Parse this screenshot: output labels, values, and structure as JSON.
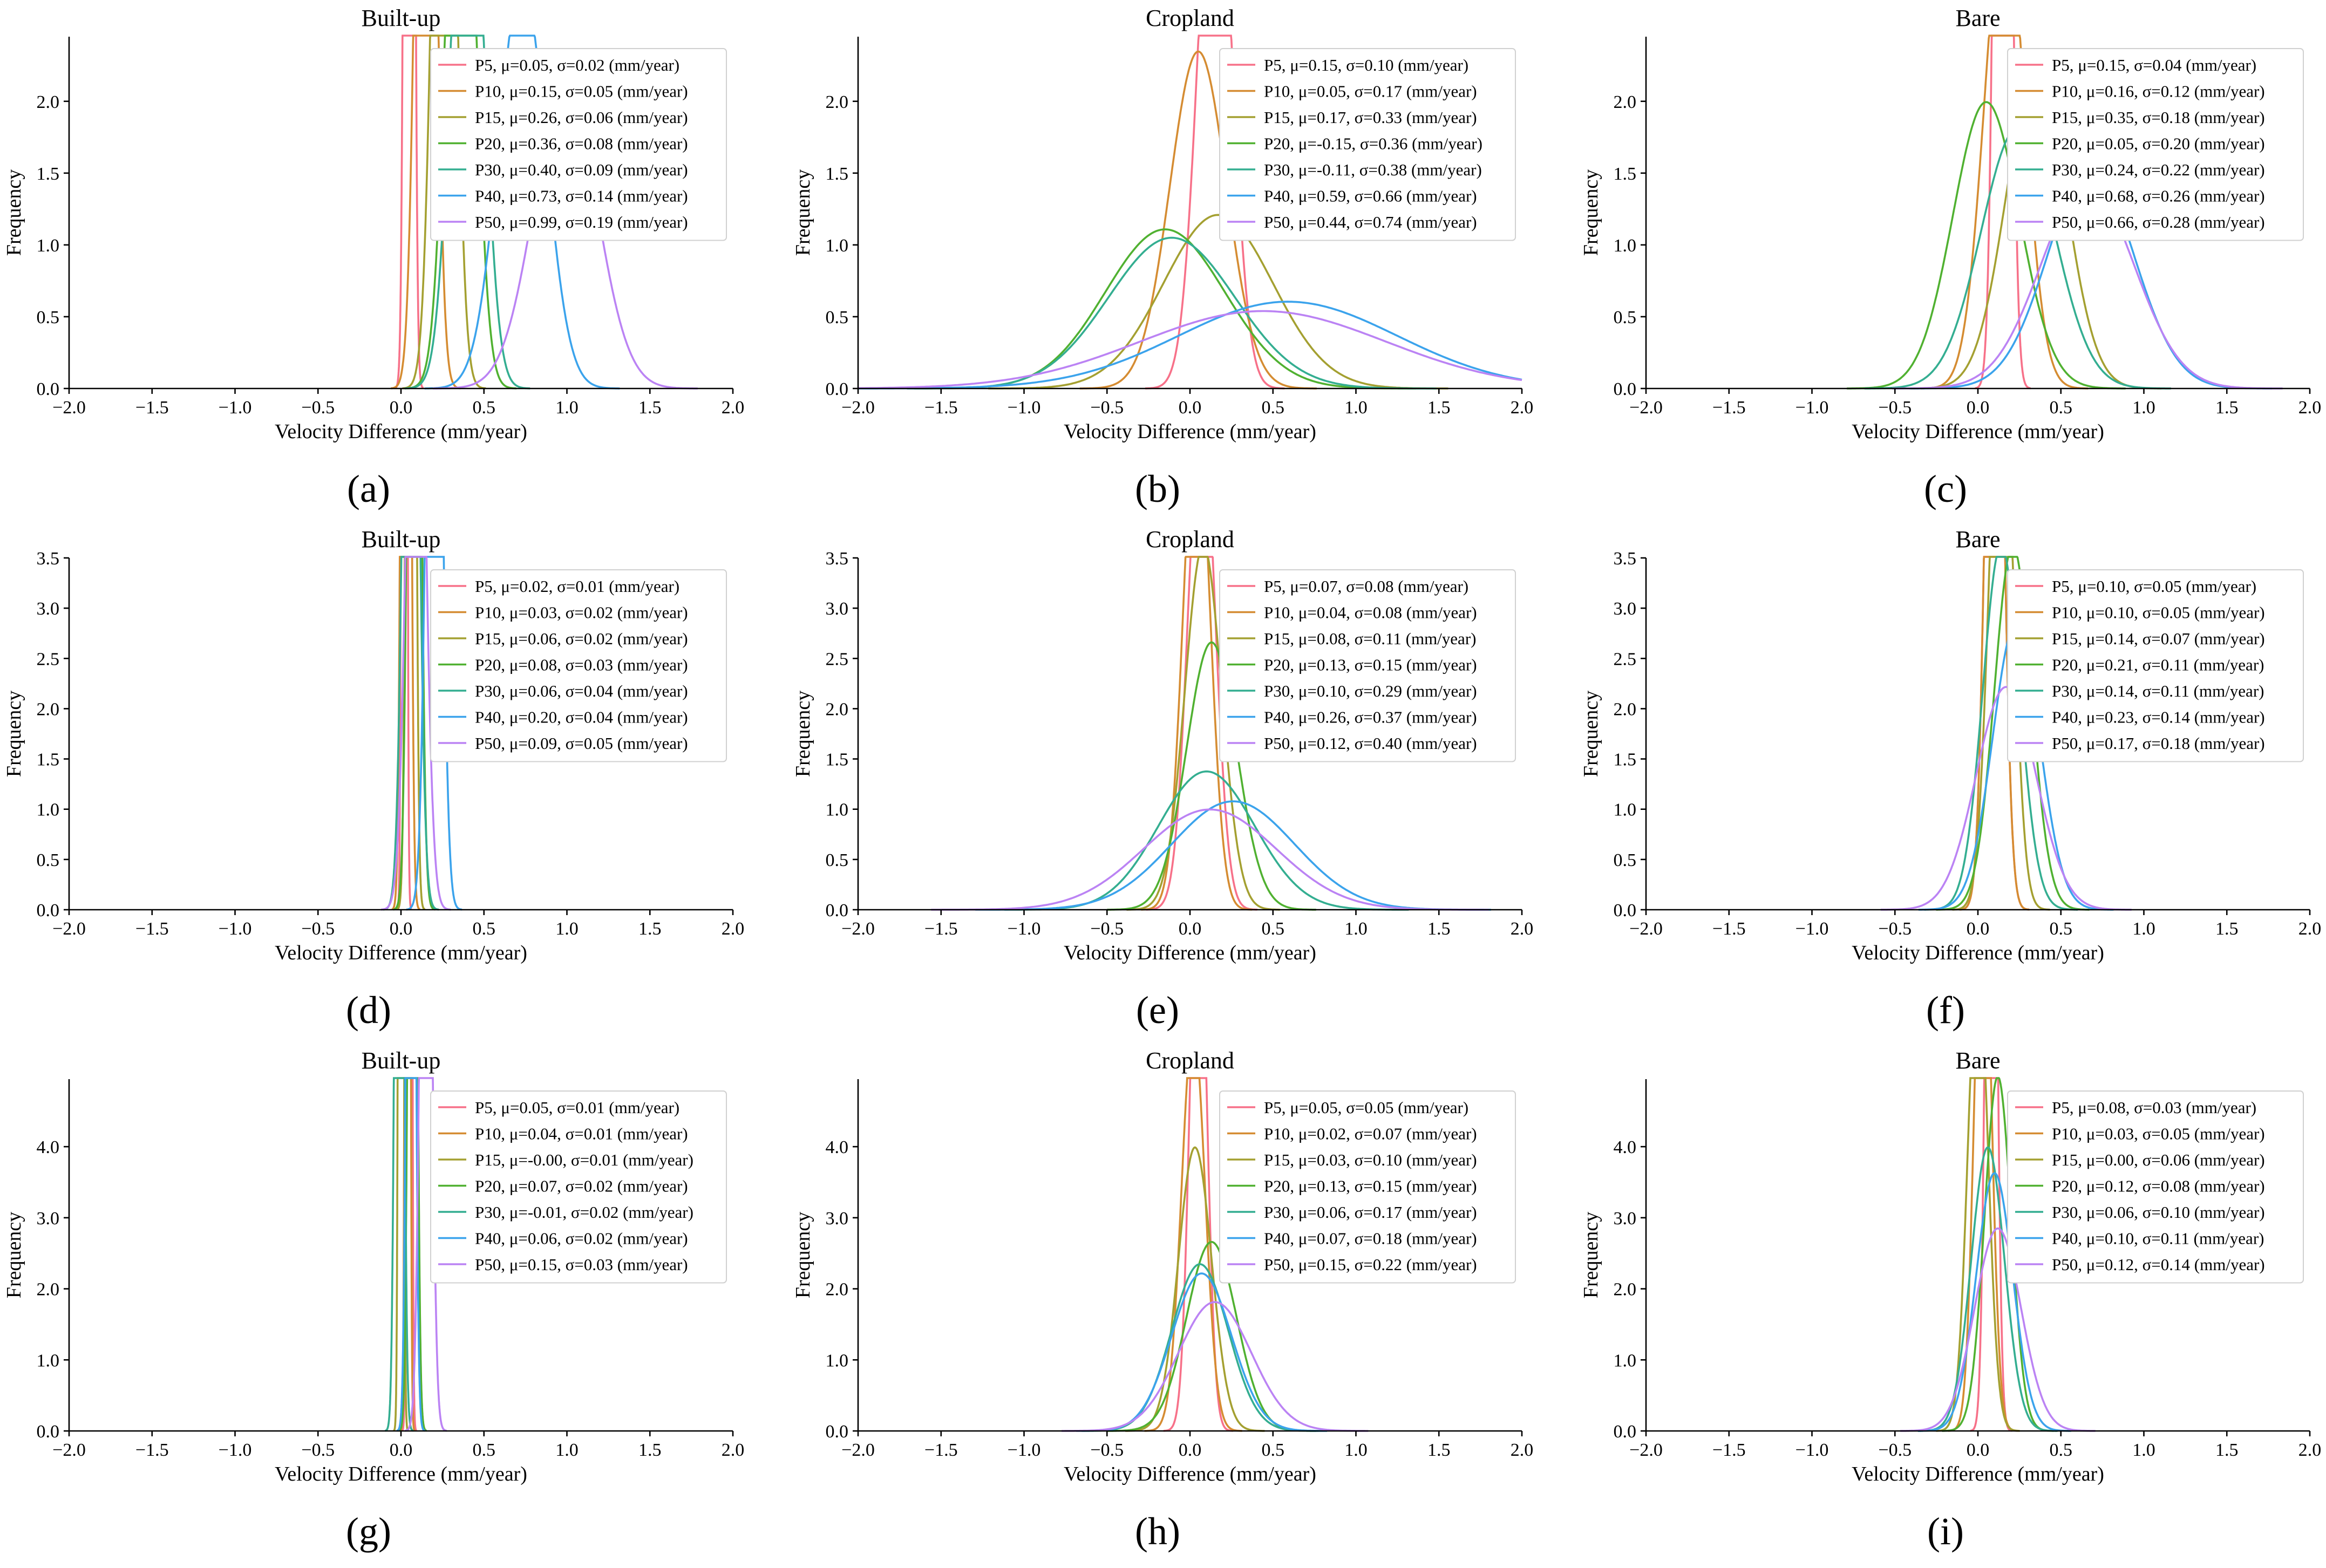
{
  "figure": {
    "unit_suffix": "(mm/year)",
    "series_colors": [
      "#f77189",
      "#d58c32",
      "#a4a031",
      "#50b131",
      "#34ae91",
      "#37abb5",
      "#3ba3ec",
      "#bb83f4"
    ],
    "series_color_map": [
      0,
      1,
      2,
      3,
      4,
      6,
      7
    ]
  },
  "chart_data": [
    {
      "id": "a",
      "type": "line",
      "panel_label": "(a)",
      "title": "Built-up",
      "xlabel": "Velocity Difference (mm/year)",
      "ylabel": "Frequency",
      "xlim": [
        -2.0,
        2.0
      ],
      "ylim": [
        0,
        2.45
      ],
      "xticks": [
        "−2.0",
        "−1.5",
        "−1.0",
        "−0.5",
        "0.0",
        "0.5",
        "1.0",
        "1.5",
        "2.0"
      ],
      "xtick_values": [
        -2,
        -1.5,
        -1,
        -0.5,
        0,
        0.5,
        1,
        1.5,
        2
      ],
      "yticks": [
        "0.0",
        "0.5",
        "1.0",
        "1.5",
        "2.0"
      ],
      "ytick_values": [
        0,
        0.5,
        1,
        1.5,
        2
      ],
      "series": [
        {
          "name": "P5",
          "mu": 0.05,
          "sigma": 0.02,
          "label": "P5, μ=0.05, σ=0.02 (mm/year)"
        },
        {
          "name": "P10",
          "mu": 0.15,
          "sigma": 0.05,
          "label": "P10, μ=0.15, σ=0.05 (mm/year)"
        },
        {
          "name": "P15",
          "mu": 0.26,
          "sigma": 0.06,
          "label": "P15, μ=0.26, σ=0.06 (mm/year)"
        },
        {
          "name": "P20",
          "mu": 0.36,
          "sigma": 0.08,
          "label": "P20, μ=0.36, σ=0.08 (mm/year)"
        },
        {
          "name": "P30",
          "mu": 0.4,
          "sigma": 0.09,
          "label": "P30, μ=0.40, σ=0.09 (mm/year)"
        },
        {
          "name": "P40",
          "mu": 0.73,
          "sigma": 0.14,
          "label": "P40, μ=0.73, σ=0.14 (mm/year)"
        },
        {
          "name": "P50",
          "mu": 0.99,
          "sigma": 0.19,
          "label": "P50, μ=0.99, σ=0.19 (mm/year)"
        }
      ]
    },
    {
      "id": "b",
      "type": "line",
      "panel_label": "(b)",
      "title": "Cropland",
      "xlabel": "Velocity Difference (mm/year)",
      "ylabel": "Frequency",
      "xlim": [
        -2.0,
        2.0
      ],
      "ylim": [
        0,
        2.45
      ],
      "xticks": [
        "−2.0",
        "−1.5",
        "−1.0",
        "−0.5",
        "0.0",
        "0.5",
        "1.0",
        "1.5",
        "2.0"
      ],
      "xtick_values": [
        -2,
        -1.5,
        -1,
        -0.5,
        0,
        0.5,
        1,
        1.5,
        2
      ],
      "yticks": [
        "0.0",
        "0.5",
        "1.0",
        "1.5",
        "2.0"
      ],
      "ytick_values": [
        0,
        0.5,
        1,
        1.5,
        2
      ],
      "series": [
        {
          "name": "P5",
          "mu": 0.15,
          "sigma": 0.1,
          "label": "P5, μ=0.15, σ=0.10 (mm/year)"
        },
        {
          "name": "P10",
          "mu": 0.05,
          "sigma": 0.17,
          "label": "P10, μ=0.05, σ=0.17 (mm/year)"
        },
        {
          "name": "P15",
          "mu": 0.17,
          "sigma": 0.33,
          "label": "P15, μ=0.17, σ=0.33 (mm/year)"
        },
        {
          "name": "P20",
          "mu": -0.15,
          "sigma": 0.36,
          "label": "P20, μ=-0.15, σ=0.36 (mm/year)"
        },
        {
          "name": "P30",
          "mu": -0.11,
          "sigma": 0.38,
          "label": "P30, μ=-0.11, σ=0.38 (mm/year)"
        },
        {
          "name": "P40",
          "mu": 0.59,
          "sigma": 0.66,
          "label": "P40, μ=0.59, σ=0.66 (mm/year)"
        },
        {
          "name": "P50",
          "mu": 0.44,
          "sigma": 0.74,
          "label": "P50, μ=0.44, σ=0.74 (mm/year)"
        }
      ]
    },
    {
      "id": "c",
      "type": "line",
      "panel_label": "(c)",
      "title": "Bare",
      "xlabel": "Velocity Difference (mm/year)",
      "ylabel": "Frequency",
      "xlim": [
        -2.0,
        2.0
      ],
      "ylim": [
        0,
        2.45
      ],
      "xticks": [
        "−2.0",
        "−1.5",
        "−1.0",
        "−0.5",
        "0.0",
        "0.5",
        "1.0",
        "1.5",
        "2.0"
      ],
      "xtick_values": [
        -2,
        -1.5,
        -1,
        -0.5,
        0,
        0.5,
        1,
        1.5,
        2
      ],
      "yticks": [
        "0.0",
        "0.5",
        "1.0",
        "1.5",
        "2.0"
      ],
      "ytick_values": [
        0,
        0.5,
        1,
        1.5,
        2
      ],
      "series": [
        {
          "name": "P5",
          "mu": 0.15,
          "sigma": 0.04,
          "label": "P5, μ=0.15, σ=0.04 (mm/year)"
        },
        {
          "name": "P10",
          "mu": 0.16,
          "sigma": 0.12,
          "label": "P10, μ=0.16, σ=0.12 (mm/year)"
        },
        {
          "name": "P15",
          "mu": 0.35,
          "sigma": 0.18,
          "label": "P15, μ=0.35, σ=0.18 (mm/year)"
        },
        {
          "name": "P20",
          "mu": 0.05,
          "sigma": 0.2,
          "label": "P20, μ=0.05, σ=0.20 (mm/year)"
        },
        {
          "name": "P30",
          "mu": 0.24,
          "sigma": 0.22,
          "label": "P30, μ=0.24, σ=0.22 (mm/year)"
        },
        {
          "name": "P40",
          "mu": 0.68,
          "sigma": 0.26,
          "label": "P40, μ=0.68, σ=0.26 (mm/year)"
        },
        {
          "name": "P50",
          "mu": 0.66,
          "sigma": 0.28,
          "label": "P50, μ=0.66, σ=0.28 (mm/year)"
        }
      ]
    },
    {
      "id": "d",
      "type": "line",
      "panel_label": "(d)",
      "title": "Built-up",
      "xlabel": "Velocity Difference (mm/year)",
      "ylabel": "Frequency",
      "xlim": [
        -2.0,
        2.0
      ],
      "ylim": [
        0,
        3.5
      ],
      "xticks": [
        "−2.0",
        "−1.5",
        "−1.0",
        "−0.5",
        "0.0",
        "0.5",
        "1.0",
        "1.5",
        "2.0"
      ],
      "xtick_values": [
        -2,
        -1.5,
        -1,
        -0.5,
        0,
        0.5,
        1,
        1.5,
        2
      ],
      "yticks": [
        "0.0",
        "0.5",
        "1.0",
        "1.5",
        "2.0",
        "2.5",
        "3.0",
        "3.5"
      ],
      "ytick_values": [
        0,
        0.5,
        1,
        1.5,
        2,
        2.5,
        3,
        3.5
      ],
      "series": [
        {
          "name": "P5",
          "mu": 0.02,
          "sigma": 0.01,
          "label": "P5, μ=0.02, σ=0.01 (mm/year)"
        },
        {
          "name": "P10",
          "mu": 0.03,
          "sigma": 0.02,
          "label": "P10, μ=0.03, σ=0.02 (mm/year)"
        },
        {
          "name": "P15",
          "mu": 0.06,
          "sigma": 0.02,
          "label": "P15, μ=0.06, σ=0.02 (mm/year)"
        },
        {
          "name": "P20",
          "mu": 0.08,
          "sigma": 0.03,
          "label": "P20, μ=0.08, σ=0.03 (mm/year)"
        },
        {
          "name": "P30",
          "mu": 0.06,
          "sigma": 0.04,
          "label": "P30, μ=0.06, σ=0.04 (mm/year)"
        },
        {
          "name": "P40",
          "mu": 0.2,
          "sigma": 0.04,
          "label": "P40, μ=0.20, σ=0.04 (mm/year)"
        },
        {
          "name": "P50",
          "mu": 0.09,
          "sigma": 0.05,
          "label": "P50, μ=0.09, σ=0.05 (mm/year)"
        }
      ]
    },
    {
      "id": "e",
      "type": "line",
      "panel_label": "(e)",
      "title": "Cropland",
      "xlabel": "Velocity Difference (mm/year)",
      "ylabel": "Frequency",
      "xlim": [
        -2.0,
        2.0
      ],
      "ylim": [
        0,
        3.5
      ],
      "xticks": [
        "−2.0",
        "−1.5",
        "−1.0",
        "−0.5",
        "0.0",
        "0.5",
        "1.0",
        "1.5",
        "2.0"
      ],
      "xtick_values": [
        -2,
        -1.5,
        -1,
        -0.5,
        0,
        0.5,
        1,
        1.5,
        2
      ],
      "yticks": [
        "0.0",
        "0.5",
        "1.0",
        "1.5",
        "2.0",
        "2.5",
        "3.0",
        "3.5"
      ],
      "ytick_values": [
        0,
        0.5,
        1,
        1.5,
        2,
        2.5,
        3,
        3.5
      ],
      "series": [
        {
          "name": "P5",
          "mu": 0.07,
          "sigma": 0.08,
          "label": "P5, μ=0.07, σ=0.08 (mm/year)"
        },
        {
          "name": "P10",
          "mu": 0.04,
          "sigma": 0.08,
          "label": "P10, μ=0.04, σ=0.08 (mm/year)"
        },
        {
          "name": "P15",
          "mu": 0.08,
          "sigma": 0.11,
          "label": "P15, μ=0.08, σ=0.11 (mm/year)"
        },
        {
          "name": "P20",
          "mu": 0.13,
          "sigma": 0.15,
          "label": "P20, μ=0.13, σ=0.15 (mm/year)"
        },
        {
          "name": "P30",
          "mu": 0.1,
          "sigma": 0.29,
          "label": "P30, μ=0.10, σ=0.29 (mm/year)"
        },
        {
          "name": "P40",
          "mu": 0.26,
          "sigma": 0.37,
          "label": "P40, μ=0.26, σ=0.37 (mm/year)"
        },
        {
          "name": "P50",
          "mu": 0.12,
          "sigma": 0.4,
          "label": "P50, μ=0.12, σ=0.40 (mm/year)"
        }
      ]
    },
    {
      "id": "f",
      "type": "line",
      "panel_label": "(f)",
      "title": "Bare",
      "xlabel": "Velocity Difference (mm/year)",
      "ylabel": "Frequency",
      "xlim": [
        -2.0,
        2.0
      ],
      "ylim": [
        0,
        3.5
      ],
      "xticks": [
        "−2.0",
        "−1.5",
        "−1.0",
        "−0.5",
        "0.0",
        "0.5",
        "1.0",
        "1.5",
        "2.0"
      ],
      "xtick_values": [
        -2,
        -1.5,
        -1,
        -0.5,
        0,
        0.5,
        1,
        1.5,
        2
      ],
      "yticks": [
        "0.0",
        "0.5",
        "1.0",
        "1.5",
        "2.0",
        "2.5",
        "3.0",
        "3.5"
      ],
      "ytick_values": [
        0,
        0.5,
        1,
        1.5,
        2,
        2.5,
        3,
        3.5
      ],
      "series": [
        {
          "name": "P5",
          "mu": 0.1,
          "sigma": 0.05,
          "label": "P5, μ=0.10, σ=0.05 (mm/year)"
        },
        {
          "name": "P10",
          "mu": 0.1,
          "sigma": 0.05,
          "label": "P10, μ=0.10, σ=0.05 (mm/year)"
        },
        {
          "name": "P15",
          "mu": 0.14,
          "sigma": 0.07,
          "label": "P15, μ=0.14, σ=0.07 (mm/year)"
        },
        {
          "name": "P20",
          "mu": 0.21,
          "sigma": 0.11,
          "label": "P20, μ=0.21, σ=0.11 (mm/year)"
        },
        {
          "name": "P30",
          "mu": 0.14,
          "sigma": 0.11,
          "label": "P30, μ=0.14, σ=0.11 (mm/year)"
        },
        {
          "name": "P40",
          "mu": 0.23,
          "sigma": 0.14,
          "label": "P40, μ=0.23, σ=0.14 (mm/year)"
        },
        {
          "name": "P50",
          "mu": 0.17,
          "sigma": 0.18,
          "label": "P50, μ=0.17, σ=0.18 (mm/year)"
        }
      ]
    },
    {
      "id": "g",
      "type": "line",
      "panel_label": "(g)",
      "title": "Built-up",
      "xlabel": "Velocity Difference (mm/year)",
      "ylabel": "Frequency",
      "xlim": [
        -2.0,
        2.0
      ],
      "ylim": [
        0,
        4.95
      ],
      "xticks": [
        "−2.0",
        "−1.5",
        "−1.0",
        "−0.5",
        "0.0",
        "0.5",
        "1.0",
        "1.5",
        "2.0"
      ],
      "xtick_values": [
        -2,
        -1.5,
        -1,
        -0.5,
        0,
        0.5,
        1,
        1.5,
        2
      ],
      "yticks": [
        "0.0",
        "1.0",
        "2.0",
        "3.0",
        "4.0"
      ],
      "ytick_values": [
        0,
        1,
        2,
        3,
        4
      ],
      "series": [
        {
          "name": "P5",
          "mu": 0.05,
          "sigma": 0.01,
          "label": "P5, μ=0.05, σ=0.01 (mm/year)"
        },
        {
          "name": "P10",
          "mu": 0.04,
          "sigma": 0.01,
          "label": "P10, μ=0.04, σ=0.01 (mm/year)"
        },
        {
          "name": "P15",
          "mu": -0.0,
          "sigma": 0.01,
          "label": "P15, μ=-0.00, σ=0.01 (mm/year)"
        },
        {
          "name": "P20",
          "mu": 0.07,
          "sigma": 0.02,
          "label": "P20, μ=0.07, σ=0.02 (mm/year)"
        },
        {
          "name": "P30",
          "mu": -0.01,
          "sigma": 0.02,
          "label": "P30, μ=-0.01, σ=0.02 (mm/year)"
        },
        {
          "name": "P40",
          "mu": 0.06,
          "sigma": 0.02,
          "label": "P40, μ=0.06, σ=0.02 (mm/year)"
        },
        {
          "name": "P50",
          "mu": 0.15,
          "sigma": 0.03,
          "label": "P50, μ=0.15, σ=0.03 (mm/year)"
        }
      ]
    },
    {
      "id": "h",
      "type": "line",
      "panel_label": "(h)",
      "title": "Cropland",
      "xlabel": "Velocity Difference (mm/year)",
      "ylabel": "Frequency",
      "xlim": [
        -2.0,
        2.0
      ],
      "ylim": [
        0,
        4.95
      ],
      "xticks": [
        "−2.0",
        "−1.5",
        "−1.0",
        "−0.5",
        "0.0",
        "0.5",
        "1.0",
        "1.5",
        "2.0"
      ],
      "xtick_values": [
        -2,
        -1.5,
        -1,
        -0.5,
        0,
        0.5,
        1,
        1.5,
        2
      ],
      "yticks": [
        "0.0",
        "1.0",
        "2.0",
        "3.0",
        "4.0"
      ],
      "ytick_values": [
        0,
        1,
        2,
        3,
        4
      ],
      "series": [
        {
          "name": "P5",
          "mu": 0.05,
          "sigma": 0.05,
          "label": "P5, μ=0.05, σ=0.05 (mm/year)"
        },
        {
          "name": "P10",
          "mu": 0.02,
          "sigma": 0.07,
          "label": "P10, μ=0.02, σ=0.07 (mm/year)"
        },
        {
          "name": "P15",
          "mu": 0.03,
          "sigma": 0.1,
          "label": "P15, μ=0.03, σ=0.10 (mm/year)"
        },
        {
          "name": "P20",
          "mu": 0.13,
          "sigma": 0.15,
          "label": "P20, μ=0.13, σ=0.15 (mm/year)"
        },
        {
          "name": "P30",
          "mu": 0.06,
          "sigma": 0.17,
          "label": "P30, μ=0.06, σ=0.17 (mm/year)"
        },
        {
          "name": "P40",
          "mu": 0.07,
          "sigma": 0.18,
          "label": "P40, μ=0.07, σ=0.18 (mm/year)"
        },
        {
          "name": "P50",
          "mu": 0.15,
          "sigma": 0.22,
          "label": "P50, μ=0.15, σ=0.22 (mm/year)"
        }
      ]
    },
    {
      "id": "i",
      "type": "line",
      "panel_label": "(i)",
      "title": "Bare",
      "xlabel": "Velocity Difference (mm/year)",
      "ylabel": "Frequency",
      "xlim": [
        -2.0,
        2.0
      ],
      "ylim": [
        0,
        4.95
      ],
      "xticks": [
        "−2.0",
        "−1.5",
        "−1.0",
        "−0.5",
        "0.0",
        "0.5",
        "1.0",
        "1.5",
        "2.0"
      ],
      "xtick_values": [
        -2,
        -1.5,
        -1,
        -0.5,
        0,
        0.5,
        1,
        1.5,
        2
      ],
      "yticks": [
        "0.0",
        "1.0",
        "2.0",
        "3.0",
        "4.0"
      ],
      "ytick_values": [
        0,
        1,
        2,
        3,
        4
      ],
      "series": [
        {
          "name": "P5",
          "mu": 0.08,
          "sigma": 0.03,
          "label": "P5, μ=0.08, σ=0.03 (mm/year)"
        },
        {
          "name": "P10",
          "mu": 0.03,
          "sigma": 0.05,
          "label": "P10, μ=0.03, σ=0.05 (mm/year)"
        },
        {
          "name": "P15",
          "mu": 0.0,
          "sigma": 0.06,
          "label": "P15, μ=0.00, σ=0.06 (mm/year)"
        },
        {
          "name": "P20",
          "mu": 0.12,
          "sigma": 0.08,
          "label": "P20, μ=0.12, σ=0.08 (mm/year)"
        },
        {
          "name": "P30",
          "mu": 0.06,
          "sigma": 0.1,
          "label": "P30, μ=0.06, σ=0.10 (mm/year)"
        },
        {
          "name": "P40",
          "mu": 0.1,
          "sigma": 0.11,
          "label": "P40, μ=0.10, σ=0.11 (mm/year)"
        },
        {
          "name": "P50",
          "mu": 0.12,
          "sigma": 0.14,
          "label": "P50, μ=0.12, σ=0.14 (mm/year)"
        }
      ]
    }
  ]
}
